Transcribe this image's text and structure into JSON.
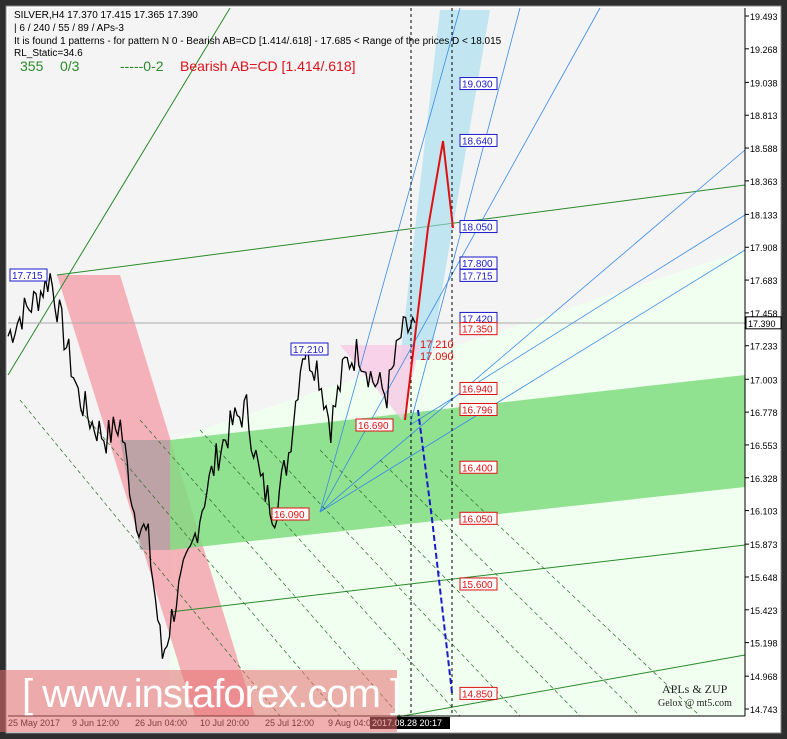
{
  "header": {
    "symbol_line": "SILVER,H4  17.370 17.415 17.365 17.390",
    "params_line": "| 6 / 240 / 55 / 89 / APs-3",
    "pattern_line": "It is found 1 patterns  -  for pattern N 0 - Bearish AB=CD [1.414/.618] - 17.685 < Range of the prices D < 18.015",
    "static_line": "RL_Static=34.6",
    "count1": "355",
    "count2": "0/3",
    "count3": "-----0-2",
    "pattern_name": "Bearish AB=CD [1.414/.618]"
  },
  "colors": {
    "up_text": "#2a8a2a",
    "pattern": "#e0101a",
    "blue_label": "#1a1acc",
    "red_label": "#e01010",
    "channel": "#7fdc7f",
    "pink": "#f5a0aa",
    "cyan": "#9fdcef"
  },
  "current_price": "17.390",
  "time_marker": "2017.08.28 20:17",
  "watermark": "[ www.instaforex.com ]",
  "credits": {
    "line1": "APLs & ZUP",
    "line2": "Gelox @ mt5.com"
  },
  "chart_data": {
    "type": "line",
    "title": "SILVER,H4",
    "ylim": [
      14.743,
      19.493
    ],
    "y_ticks": [
      "19.493",
      "19.268",
      "19.038",
      "18.813",
      "18.588",
      "18.363",
      "18.133",
      "17.908",
      "17.683",
      "17.458",
      "17.233",
      "17.003",
      "16.778",
      "16.553",
      "16.328",
      "16.103",
      "15.873",
      "15.648",
      "15.423",
      "15.198",
      "14.968",
      "14.743"
    ],
    "x_ticks": [
      "25 May 2017",
      "9 Jun 12:00",
      "26 Jun 04:00",
      "10 Jul 20:00",
      "25 Jul 12:00",
      "9 Aug 04:00"
    ],
    "close_approx": [
      17.3,
      17.45,
      17.55,
      17.715,
      17.3,
      16.9,
      16.7,
      16.6,
      16.7,
      16.1,
      15.9,
      15.1,
      15.5,
      15.8,
      16.2,
      16.5,
      16.7,
      16.8,
      16.3,
      16.09,
      16.5,
      17.21,
      17.1,
      16.69,
      17.1,
      17.2,
      17.0,
      16.9,
      17.3,
      17.39
    ],
    "levels": [
      {
        "v": "19.030",
        "c": "blue"
      },
      {
        "v": "18.640",
        "c": "blue"
      },
      {
        "v": "18.050",
        "c": "blue"
      },
      {
        "v": "17.800",
        "c": "blue"
      },
      {
        "v": "17.715",
        "c": "blue"
      },
      {
        "v": "17.420",
        "c": "blue"
      },
      {
        "v": "17.350",
        "c": "red"
      },
      {
        "v": "16.940",
        "c": "red"
      },
      {
        "v": "16.796",
        "c": "red"
      },
      {
        "v": "16.400",
        "c": "red"
      },
      {
        "v": "16.050",
        "c": "red"
      },
      {
        "v": "15.600",
        "c": "red"
      },
      {
        "v": "14.850",
        "c": "red"
      }
    ],
    "pivots": [
      {
        "v": "17.715",
        "c": "blue"
      },
      {
        "v": "17.210",
        "c": "blue"
      },
      {
        "v": "16.690",
        "c": "red"
      },
      {
        "v": "16.090",
        "c": "red"
      }
    ],
    "red_text": [
      "17.210",
      "17.090"
    ]
  }
}
